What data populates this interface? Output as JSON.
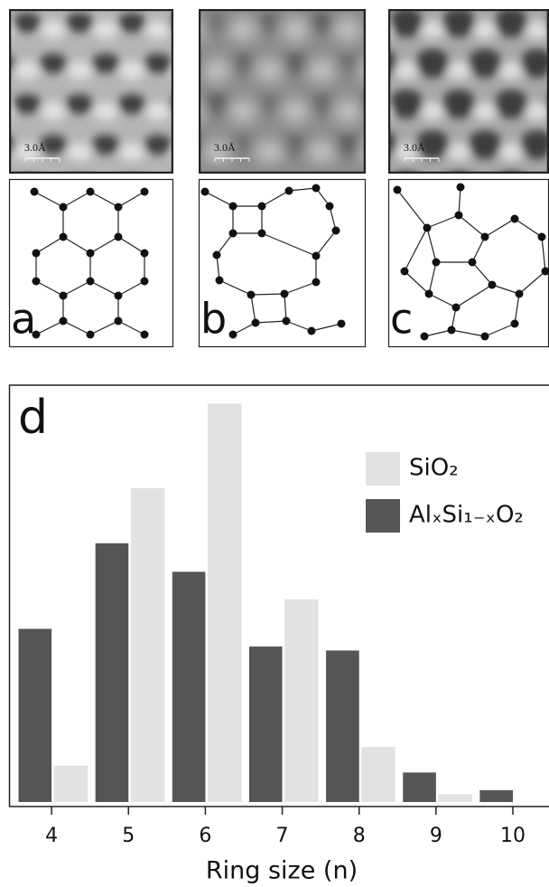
{
  "panels": [
    {
      "label": "a",
      "scale": "3.0Å"
    },
    {
      "label": "b",
      "scale": "3.0Å"
    },
    {
      "label": "c",
      "scale": "3.0Å"
    }
  ],
  "chart_data": {
    "type": "bar",
    "panel_label": "d",
    "x_label": "Ring size (n)",
    "x": [
      4,
      5,
      6,
      7,
      8,
      9,
      10
    ],
    "xlim": [
      3.47,
      10.47
    ],
    "xticks": [
      4,
      5,
      6,
      7,
      8,
      9,
      10
    ],
    "ylim": [
      0,
      420
    ],
    "series": [
      {
        "name": "AlₓSi₁₋ₓO₂",
        "color": "#555555",
        "values": [
          176,
          263,
          234,
          158,
          154,
          30,
          12
        ]
      },
      {
        "name": "SiO₂",
        "color": "#e2e2e2",
        "values": [
          37,
          319,
          405,
          206,
          56,
          8,
          null
        ]
      }
    ]
  }
}
